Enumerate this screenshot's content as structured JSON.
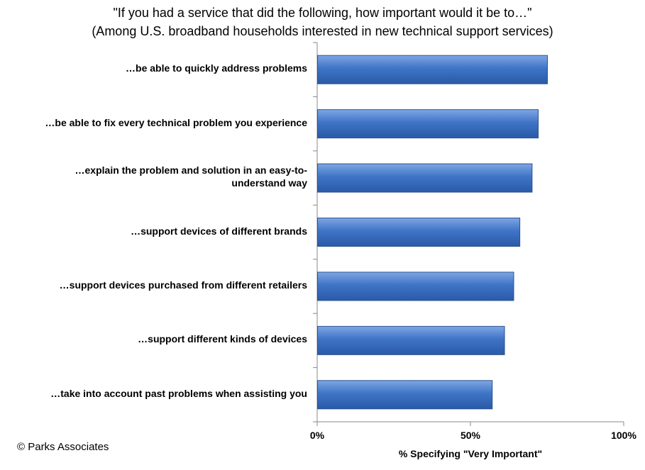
{
  "chart_data": {
    "type": "bar",
    "orientation": "horizontal",
    "title": "\"If you had a service that did the following, how important would it be to…\"",
    "subtitle": "(Among U.S. broadband households interested in new technical support services)",
    "categories": [
      "…be able to quickly address problems",
      "…be able to fix every technical problem you experience",
      "…explain the problem and solution in an easy-to-understand way",
      "…support devices of different brands",
      "…support devices purchased from different retailers",
      "…support different kinds of devices",
      "…take into account past problems when assisting you"
    ],
    "category_lines": [
      [
        "…be able to quickly address problems"
      ],
      [
        "…be able to fix every technical problem you experience"
      ],
      [
        "…explain the problem and solution in an easy-to-",
        "understand way"
      ],
      [
        "…support devices of different brands"
      ],
      [
        "…support devices purchased from different retailers"
      ],
      [
        "…support different kinds of devices"
      ],
      [
        "…take into account past problems when assisting you"
      ]
    ],
    "values": [
      75,
      72,
      70,
      66,
      64,
      61,
      57
    ],
    "xlabel": "% Specifying \"Very Important\"",
    "xlim": [
      0,
      100
    ],
    "xticks": [
      "0%",
      "50%",
      "100%"
    ],
    "grid": false,
    "bar_color": "#3a6fc0"
  },
  "footer": {
    "credit": "© Parks Associates"
  }
}
